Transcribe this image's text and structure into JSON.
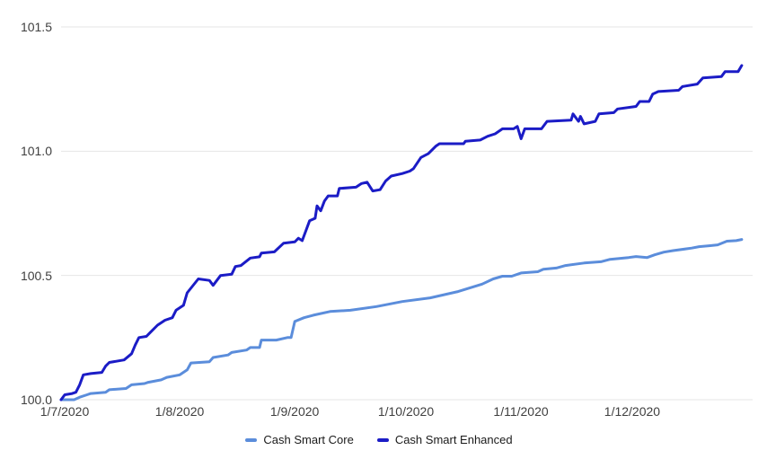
{
  "chart_data": {
    "type": "line",
    "title": "",
    "x_axis": {
      "label": "",
      "min_day": 0,
      "max_day": 184,
      "tick_days": [
        0,
        31,
        62,
        92,
        123,
        153
      ],
      "tick_labels": [
        "1/7/2020",
        "1/8/2020",
        "1/9/2020",
        "1/10/2020",
        "1/11/2020",
        "1/12/2020"
      ]
    },
    "y_axis": {
      "label": "",
      "min": 100.0,
      "max": 101.5,
      "ticks": [
        101.5,
        101.0,
        100.5,
        100.0
      ],
      "tick_labels": [
        "101.5",
        "101.0",
        "100.5",
        "100.0"
      ]
    },
    "grid": true,
    "grid_color": "#e6e6e6",
    "axis_text_color": "#3f3f3f",
    "legend_position": "bottom",
    "series": [
      {
        "name": "Cash Smart Core",
        "color": "#5b8ddb",
        "points": [
          [
            0,
            100.0
          ],
          [
            3.5,
            100.0
          ],
          [
            5,
            100.01
          ],
          [
            7,
            100.02
          ],
          [
            8,
            100.025
          ],
          [
            12,
            100.03
          ],
          [
            13,
            100.04
          ],
          [
            17.5,
            100.045
          ],
          [
            19,
            100.06
          ],
          [
            22.5,
            100.065
          ],
          [
            23.5,
            100.07
          ],
          [
            27,
            100.08
          ],
          [
            28.5,
            100.09
          ],
          [
            32,
            100.1
          ],
          [
            34,
            100.12
          ],
          [
            35,
            100.148
          ],
          [
            40,
            100.153
          ],
          [
            41,
            100.17
          ],
          [
            45,
            100.18
          ],
          [
            46,
            100.19
          ],
          [
            50,
            100.2
          ],
          [
            51,
            100.21
          ],
          [
            53.5,
            100.21
          ],
          [
            54,
            100.24
          ],
          [
            58,
            100.24
          ],
          [
            61,
            100.25
          ],
          [
            62,
            100.25
          ],
          [
            63,
            100.315
          ],
          [
            65.5,
            100.33
          ],
          [
            68,
            100.34
          ],
          [
            72.5,
            100.355
          ],
          [
            78,
            100.36
          ],
          [
            85,
            100.375
          ],
          [
            92,
            100.395
          ],
          [
            99.5,
            100.41
          ],
          [
            107,
            100.435
          ],
          [
            113.5,
            100.465
          ],
          [
            116.5,
            100.486
          ],
          [
            119,
            100.497
          ],
          [
            121.5,
            100.497
          ],
          [
            124,
            100.51
          ],
          [
            128.5,
            100.515
          ],
          [
            130,
            100.525
          ],
          [
            133.5,
            100.53
          ],
          [
            136,
            100.54
          ],
          [
            141,
            100.55
          ],
          [
            145.5,
            100.555
          ],
          [
            148,
            100.565
          ],
          [
            153,
            100.572
          ],
          [
            155,
            100.576
          ],
          [
            158,
            100.572
          ],
          [
            160,
            100.583
          ],
          [
            162.5,
            100.594
          ],
          [
            165,
            100.6
          ],
          [
            170,
            100.61
          ],
          [
            172,
            100.616
          ],
          [
            175,
            100.62
          ],
          [
            177,
            100.623
          ],
          [
            179.5,
            100.638
          ],
          [
            182,
            100.64
          ],
          [
            183.5,
            100.645
          ]
        ]
      },
      {
        "name": "Cash Smart Enhanced",
        "color": "#1b1cc6",
        "points": [
          [
            0,
            100.0
          ],
          [
            1,
            100.02
          ],
          [
            3,
            100.025
          ],
          [
            4,
            100.03
          ],
          [
            5,
            100.06
          ],
          [
            6,
            100.1
          ],
          [
            8,
            100.105
          ],
          [
            11,
            100.11
          ],
          [
            12,
            100.135
          ],
          [
            13,
            100.15
          ],
          [
            17,
            100.16
          ],
          [
            19,
            100.185
          ],
          [
            20,
            100.22
          ],
          [
            21,
            100.25
          ],
          [
            23,
            100.255
          ],
          [
            24,
            100.27
          ],
          [
            26,
            100.3
          ],
          [
            28,
            100.32
          ],
          [
            30,
            100.33
          ],
          [
            31,
            100.36
          ],
          [
            33,
            100.38
          ],
          [
            34,
            100.43
          ],
          [
            37,
            100.486
          ],
          [
            40,
            100.48
          ],
          [
            41,
            100.46
          ],
          [
            43,
            100.5
          ],
          [
            46,
            100.505
          ],
          [
            47,
            100.536
          ],
          [
            48.5,
            100.54
          ],
          [
            51,
            100.57
          ],
          [
            53.5,
            100.575
          ],
          [
            54,
            100.59
          ],
          [
            57.5,
            100.595
          ],
          [
            60,
            100.63
          ],
          [
            63,
            100.635
          ],
          [
            64,
            100.65
          ],
          [
            65,
            100.64
          ],
          [
            66,
            100.68
          ],
          [
            67,
            100.72
          ],
          [
            68.5,
            100.73
          ],
          [
            69,
            100.78
          ],
          [
            70,
            100.76
          ],
          [
            71,
            100.8
          ],
          [
            72,
            100.82
          ],
          [
            74.5,
            100.82
          ],
          [
            75,
            100.85
          ],
          [
            79.5,
            100.855
          ],
          [
            81,
            100.87
          ],
          [
            82.5,
            100.875
          ],
          [
            84,
            100.84
          ],
          [
            86,
            100.845
          ],
          [
            87.5,
            100.88
          ],
          [
            89,
            100.9
          ],
          [
            92,
            100.91
          ],
          [
            94,
            100.92
          ],
          [
            95,
            100.93
          ],
          [
            97,
            100.975
          ],
          [
            99,
            100.99
          ],
          [
            101,
            101.02
          ],
          [
            102,
            101.03
          ],
          [
            108.5,
            101.03
          ],
          [
            109,
            101.04
          ],
          [
            113,
            101.045
          ],
          [
            115,
            101.06
          ],
          [
            117,
            101.07
          ],
          [
            119,
            101.09
          ],
          [
            122,
            101.09
          ],
          [
            123,
            101.1
          ],
          [
            124,
            101.05
          ],
          [
            125,
            101.09
          ],
          [
            129.5,
            101.09
          ],
          [
            131,
            101.12
          ],
          [
            137.5,
            101.125
          ],
          [
            138,
            101.15
          ],
          [
            139.5,
            101.12
          ],
          [
            140,
            101.14
          ],
          [
            141,
            101.11
          ],
          [
            144,
            101.12
          ],
          [
            145,
            101.15
          ],
          [
            149,
            101.155
          ],
          [
            150,
            101.17
          ],
          [
            155,
            101.18
          ],
          [
            156,
            101.2
          ],
          [
            158.5,
            101.2
          ],
          [
            159.5,
            101.23
          ],
          [
            161,
            101.24
          ],
          [
            166.5,
            101.245
          ],
          [
            167.5,
            101.26
          ],
          [
            171.5,
            101.27
          ],
          [
            173,
            101.295
          ],
          [
            178,
            101.3
          ],
          [
            179,
            101.32
          ],
          [
            182.5,
            101.32
          ],
          [
            183.5,
            101.345
          ]
        ]
      }
    ]
  }
}
